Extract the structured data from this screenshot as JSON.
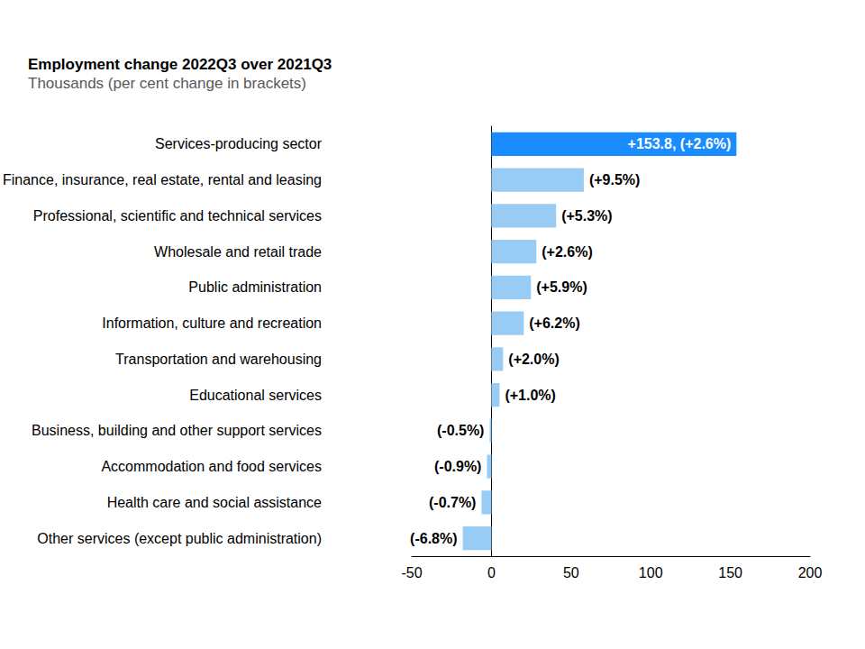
{
  "chart_data": {
    "type": "bar",
    "orientation": "horizontal",
    "title": "Employment change 2022Q3 over 2021Q3",
    "subtitle": "Thousands (per cent change in brackets)",
    "categories": [
      "Services-producing sector",
      "Finance, insurance, real estate, rental and leasing",
      "Professional, scientific and technical services",
      "Wholesale and retail trade",
      "Public administration",
      "Information, culture and recreation",
      "Transportation and warehousing",
      "Educational services",
      "Business, building and other support services",
      "Accommodation and food services",
      "Health care and social assistance",
      "Other services (except public administration)"
    ],
    "values": [
      153.8,
      58.0,
      40.6,
      28.2,
      24.8,
      20.3,
      7.3,
      5.1,
      -1.1,
      -2.8,
      -6.2,
      -18.0
    ],
    "annotations": [
      "+153.8, (+2.6%)",
      "(+9.5%)",
      "(+5.3%)",
      "(+2.6%)",
      "(+5.9%)",
      "(+6.2%)",
      "(+2.0%)",
      "(+1.0%)",
      "(-0.5%)",
      "(-0.9%)",
      "(-0.7%)",
      "(-6.8%)"
    ],
    "colors": [
      "#1a8cff",
      "#99ccf5",
      "#99ccf5",
      "#99ccf5",
      "#99ccf5",
      "#99ccf5",
      "#99ccf5",
      "#99ccf5",
      "#99ccf5",
      "#99ccf5",
      "#99ccf5",
      "#99ccf5"
    ],
    "xlim": [
      -50,
      200
    ],
    "xticks": [
      -50,
      0,
      50,
      100,
      150,
      200
    ],
    "grid": false
  }
}
